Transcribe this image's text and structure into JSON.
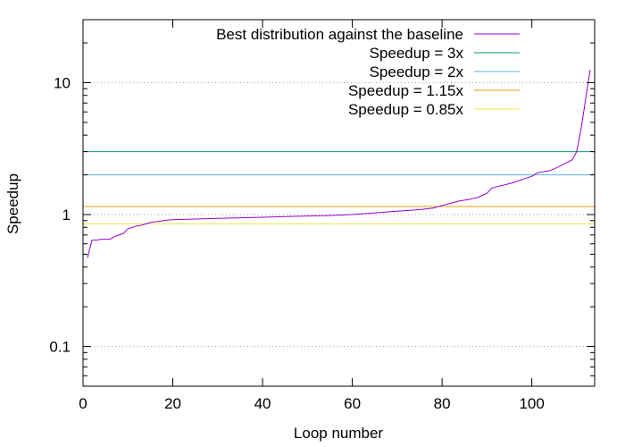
{
  "chart_data": {
    "type": "line",
    "xlabel": "Loop number",
    "ylabel": "Speedup",
    "xlim": [
      0,
      114
    ],
    "ylim": [
      0.05,
      30
    ],
    "yscale": "log",
    "grid": "dotted horizontal lines at y = 0.1, 1, 10",
    "legend_position": "top-right",
    "x_ticks": [
      {
        "value": 0,
        "label": "0"
      },
      {
        "value": 20,
        "label": "20"
      },
      {
        "value": 40,
        "label": "40"
      },
      {
        "value": 60,
        "label": "60"
      },
      {
        "value": 80,
        "label": "80"
      },
      {
        "value": 100,
        "label": "100"
      }
    ],
    "y_ticks": [
      {
        "value": 0.1,
        "label": "0.1"
      },
      {
        "value": 1,
        "label": "1"
      },
      {
        "value": 10,
        "label": "10"
      }
    ],
    "series": [
      {
        "name": "Best distribution against the baseline",
        "color": "#9400d3",
        "points": [
          [
            1,
            0.47
          ],
          [
            2,
            0.64
          ],
          [
            3,
            0.64
          ],
          [
            4,
            0.65
          ],
          [
            5,
            0.65
          ],
          [
            6,
            0.65
          ],
          [
            7,
            0.68
          ],
          [
            8,
            0.7
          ],
          [
            9,
            0.72
          ],
          [
            10,
            0.78
          ],
          [
            11,
            0.8
          ],
          [
            12,
            0.82
          ],
          [
            13,
            0.83
          ],
          [
            14,
            0.85
          ],
          [
            15,
            0.87
          ],
          [
            16,
            0.88
          ],
          [
            17,
            0.89
          ],
          [
            18,
            0.9
          ],
          [
            19,
            0.91
          ],
          [
            20,
            0.915
          ],
          [
            25,
            0.925
          ],
          [
            30,
            0.935
          ],
          [
            35,
            0.945
          ],
          [
            40,
            0.955
          ],
          [
            45,
            0.965
          ],
          [
            50,
            0.975
          ],
          [
            55,
            0.985
          ],
          [
            60,
            1.0
          ],
          [
            65,
            1.03
          ],
          [
            70,
            1.06
          ],
          [
            75,
            1.09
          ],
          [
            78,
            1.12
          ],
          [
            80,
            1.17
          ],
          [
            82,
            1.22
          ],
          [
            84,
            1.27
          ],
          [
            86,
            1.3
          ],
          [
            88,
            1.35
          ],
          [
            90,
            1.45
          ],
          [
            91,
            1.58
          ],
          [
            92,
            1.62
          ],
          [
            94,
            1.68
          ],
          [
            96,
            1.75
          ],
          [
            98,
            1.85
          ],
          [
            100,
            1.95
          ],
          [
            101,
            2.05
          ],
          [
            102,
            2.1
          ],
          [
            104,
            2.15
          ],
          [
            106,
            2.3
          ],
          [
            108,
            2.5
          ],
          [
            109,
            2.6
          ],
          [
            110,
            3.0
          ],
          [
            111,
            4.5
          ],
          [
            112,
            7.5
          ],
          [
            113,
            12.5
          ]
        ]
      },
      {
        "name": "Speedup = 3x",
        "color": "#009e73",
        "constant": 3
      },
      {
        "name": "Speedup = 2x",
        "color": "#56b4e9",
        "constant": 2
      },
      {
        "name": "Speedup = 1.15x",
        "color": "#e69f00",
        "constant": 1.15
      },
      {
        "name": "Speedup = 0.85x",
        "color": "#f0e442",
        "constant": 0.85
      }
    ]
  }
}
